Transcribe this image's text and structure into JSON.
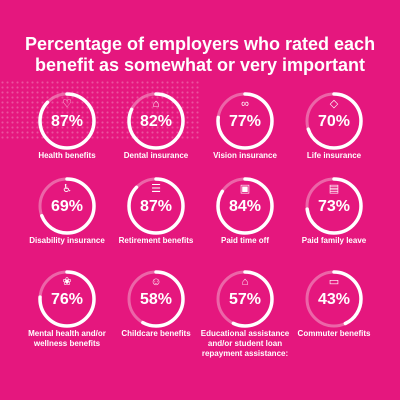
{
  "title": "Percentage of employers who rated each benefit as somewhat or very important",
  "colors": {
    "background": "#e5177e",
    "ring_track": "#f3a6cb",
    "ring_fill": "#ffffff",
    "text": "#ffffff"
  },
  "chart_data": {
    "type": "radial-progress",
    "title": "Percentage of employers who rated each benefit as somewhat or very important",
    "unit": "%",
    "items": [
      {
        "label": "Health benefits",
        "value": 87,
        "display": "87%",
        "icon": "heartbeat-icon"
      },
      {
        "label": "Dental insurance",
        "value": 82,
        "display": "82%",
        "icon": "tooth-icon"
      },
      {
        "label": "Vision insurance",
        "value": 77,
        "display": "77%",
        "icon": "glasses-icon"
      },
      {
        "label": "Life insurance",
        "value": 70,
        "display": "70%",
        "icon": "shield-icon"
      },
      {
        "label": "Disability insurance",
        "value": 69,
        "display": "69%",
        "icon": "accessibility-icon"
      },
      {
        "label": "Retirement benefits",
        "value": 87,
        "display": "87%",
        "icon": "document-icon"
      },
      {
        "label": "Paid time off",
        "value": 84,
        "display": "84%",
        "icon": "calendar-icon"
      },
      {
        "label": "Paid family leave",
        "value": 73,
        "display": "73%",
        "icon": "family-photo-icon"
      },
      {
        "label": "Mental health and/or wellness benefits",
        "value": 76,
        "display": "76%",
        "icon": "brain-icon"
      },
      {
        "label": "Childcare benefits",
        "value": 58,
        "display": "58%",
        "icon": "child-icon"
      },
      {
        "label": "Educational assistance and/or student loan repayment assistance:",
        "value": 57,
        "display": "57%",
        "icon": "graduation-cap-icon"
      },
      {
        "label": "Commuter benefits",
        "value": 43,
        "display": "43%",
        "icon": "bus-icon"
      }
    ]
  }
}
